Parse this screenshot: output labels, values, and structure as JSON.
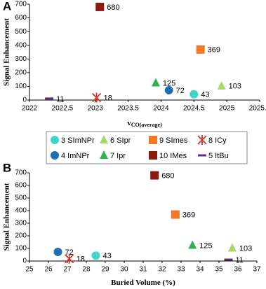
{
  "legend": {
    "entries": [
      {
        "name": "3 SImNPr",
        "color": "#3fd6c6",
        "marker": "circle"
      },
      {
        "name": "4 ImNPr",
        "color": "#1f6fb5",
        "marker": "circle"
      },
      {
        "name": "5 ItBu",
        "color": "#5b2c83",
        "marker": "dash"
      },
      {
        "name": "6 SIpr",
        "color": "#a6d96a",
        "marker": "triangle"
      },
      {
        "name": "7 Ipr",
        "color": "#2eb24a",
        "marker": "triangle"
      },
      {
        "name": "8 ICy",
        "color": "#d03a2a",
        "marker": "star"
      },
      {
        "name": "9 SImes",
        "color": "#f07a2a",
        "marker": "square"
      },
      {
        "name": "10 IMes",
        "color": "#8b1a10",
        "marker": "square"
      }
    ]
  },
  "chart_data": [
    {
      "type": "scatter",
      "panel_label": "A",
      "y_label": "Signal Enhancement",
      "x_label": {
        "main": "v",
        "sub": "CO(average)"
      },
      "xlim": [
        2022,
        2025.5
      ],
      "xticks": [
        2022,
        2022.5,
        2023,
        2023.5,
        2024,
        2024.5,
        2025,
        2025.5
      ],
      "ylim": [
        0,
        700
      ],
      "yticks": [
        0,
        100,
        200,
        300,
        400,
        500,
        600,
        700
      ],
      "grid": false,
      "series": [
        {
          "x": [
            2024.5
          ],
          "values": [
            43
          ]
        },
        {
          "x": [
            2024.12
          ],
          "values": [
            72
          ]
        },
        {
          "x": [
            2022.3
          ],
          "values": [
            11
          ]
        },
        {
          "x": [
            2024.92
          ],
          "values": [
            103
          ]
        },
        {
          "x": [
            2023.92
          ],
          "values": [
            125
          ]
        },
        {
          "x": [
            2023.02
          ],
          "values": [
            18
          ]
        },
        {
          "x": [
            2024.6
          ],
          "values": [
            369
          ]
        },
        {
          "x": [
            2023.07
          ],
          "values": [
            680
          ]
        }
      ]
    },
    {
      "type": "scatter",
      "panel_label": "B",
      "y_label": "Signal Enhancement",
      "x_label": {
        "main": "Buried Volume (%)"
      },
      "xlim": [
        25,
        37
      ],
      "xticks": [
        25,
        26,
        27,
        28,
        29,
        30,
        31,
        32,
        33,
        34,
        35,
        36,
        37
      ],
      "ylim": [
        0,
        700
      ],
      "yticks": [
        0,
        100,
        200,
        300,
        400,
        500,
        600,
        700
      ],
      "grid": false,
      "series": [
        {
          "x": [
            28.5
          ],
          "values": [
            43
          ]
        },
        {
          "x": [
            26.5
          ],
          "values": [
            72
          ]
        },
        {
          "x": [
            35.5
          ],
          "values": [
            11
          ]
        },
        {
          "x": [
            35.7
          ],
          "values": [
            103
          ]
        },
        {
          "x": [
            33.6
          ],
          "values": [
            125
          ]
        },
        {
          "x": [
            27.1
          ],
          "values": [
            18
          ]
        },
        {
          "x": [
            32.7
          ],
          "values": [
            369
          ]
        },
        {
          "x": [
            31.6
          ],
          "values": [
            680
          ]
        }
      ]
    }
  ]
}
